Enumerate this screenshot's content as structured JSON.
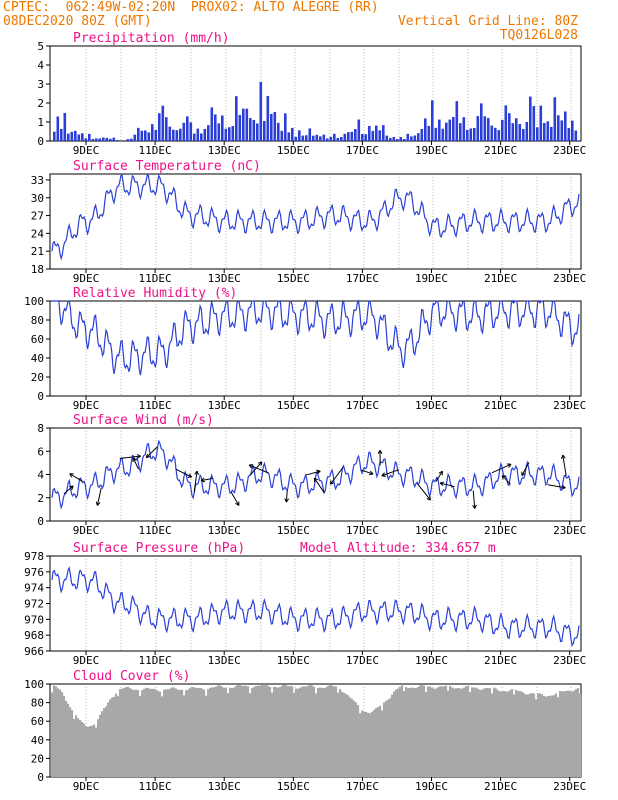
{
  "header": {
    "line1_left": "CPTEC:  062:49W-02:20N  PROX02: ALTO ALEGRE (RR)",
    "line2_left": "08DEC2020 80Z (GMT)",
    "line2_right": "Vertical Grid Line: 80Z",
    "line3_right": "TQ0126L028"
  },
  "colors": {
    "header": "#ee7700",
    "title": "#ee1188",
    "series": "#2b3fd6",
    "cloud": "#a8a8a8",
    "grid": "#888888"
  },
  "x_ticks": [
    "9DEC",
    "11DEC",
    "13DEC",
    "15DEC",
    "17DEC",
    "19DEC",
    "21DEC",
    "23DEC"
  ],
  "chart_data": [
    {
      "type": "bar",
      "title": "Precipitation (mm/h)",
      "yticks": [
        "0",
        "1",
        "2",
        "3",
        "4",
        "5"
      ],
      "ylim": [
        0,
        5
      ],
      "x": [
        "8DEC",
        "9DEC",
        "10DEC",
        "11DEC",
        "12DEC",
        "13DEC",
        "14DEC",
        "15DEC",
        "16DEC",
        "17DEC",
        "18DEC",
        "19DEC",
        "20DEC",
        "21DEC",
        "22DEC",
        "23DEC"
      ],
      "values": [
        1.4,
        0.3,
        0.1,
        1.5,
        1.0,
        1.8,
        2.5,
        0.6,
        0.3,
        1.0,
        0.2,
        1.8,
        1.6,
        1.5,
        2.0,
        1.5
      ]
    },
    {
      "type": "line",
      "title": "Surface Temperature (nC)",
      "yticks": [
        "18",
        "21",
        "24",
        "27",
        "30",
        "33"
      ],
      "ylim": [
        18,
        34
      ],
      "x": [
        "8DEC",
        "9DEC",
        "10DEC",
        "11DEC",
        "12DEC",
        "13DEC",
        "14DEC",
        "15DEC",
        "16DEC",
        "17DEC",
        "18DEC",
        "19DEC",
        "20DEC",
        "21DEC",
        "22DEC",
        "23DEC"
      ],
      "values": [
        21,
        26,
        32,
        32,
        27,
        26,
        26,
        26,
        27,
        26,
        30,
        25,
        26,
        26,
        26,
        29
      ]
    },
    {
      "type": "line",
      "title": "Relative Humidity (%)",
      "yticks": [
        "0",
        "20",
        "40",
        "60",
        "80",
        "100"
      ],
      "ylim": [
        0,
        100
      ],
      "x": [
        "8DEC",
        "9DEC",
        "10DEC",
        "11DEC",
        "12DEC",
        "13DEC",
        "14DEC",
        "15DEC",
        "16DEC",
        "17DEC",
        "18DEC",
        "19DEC",
        "20DEC",
        "21DEC",
        "22DEC",
        "23DEC"
      ],
      "values": [
        100,
        70,
        40,
        45,
        75,
        85,
        90,
        85,
        80,
        85,
        50,
        90,
        85,
        90,
        90,
        70
      ]
    },
    {
      "type": "line",
      "title": "Surface Wind (m/s)",
      "yticks": [
        "0",
        "2",
        "4",
        "6",
        "8"
      ],
      "ylim": [
        0,
        8
      ],
      "x": [
        "8DEC",
        "9DEC",
        "10DEC",
        "11DEC",
        "12DEC",
        "13DEC",
        "14DEC",
        "15DEC",
        "16DEC",
        "17DEC",
        "18DEC",
        "19DEC",
        "20DEC",
        "21DEC",
        "22DEC",
        "23DEC"
      ],
      "values": [
        2,
        3,
        4.5,
        6,
        3,
        3,
        4,
        3,
        3.5,
        5,
        4,
        3,
        3,
        4,
        4,
        3
      ]
    },
    {
      "type": "line",
      "title": "Surface Pressure (hPa)",
      "annotation": "Model Altitude: 334.657 m",
      "yticks": [
        "966",
        "968",
        "970",
        "972",
        "974",
        "976",
        "978"
      ],
      "ylim": [
        966,
        978
      ],
      "x": [
        "8DEC",
        "9DEC",
        "10DEC",
        "11DEC",
        "12DEC",
        "13DEC",
        "14DEC",
        "15DEC",
        "16DEC",
        "17DEC",
        "18DEC",
        "19DEC",
        "20DEC",
        "21DEC",
        "22DEC",
        "23DEC"
      ],
      "values": [
        975,
        975,
        972,
        970,
        970,
        971,
        971,
        970,
        970,
        971,
        971,
        970,
        970,
        969,
        969,
        968
      ]
    },
    {
      "type": "area",
      "title": "Cloud Cover (%)",
      "yticks": [
        "0",
        "20",
        "40",
        "60",
        "80",
        "100"
      ],
      "ylim": [
        0,
        100
      ],
      "x": [
        "8DEC",
        "9DEC",
        "10DEC",
        "11DEC",
        "12DEC",
        "13DEC",
        "14DEC",
        "15DEC",
        "16DEC",
        "17DEC",
        "18DEC",
        "19DEC",
        "20DEC",
        "21DEC",
        "22DEC",
        "23DEC"
      ],
      "values": [
        97,
        55,
        95,
        94,
        95,
        97,
        98,
        97,
        97,
        70,
        97,
        97,
        96,
        93,
        88,
        95
      ]
    }
  ]
}
